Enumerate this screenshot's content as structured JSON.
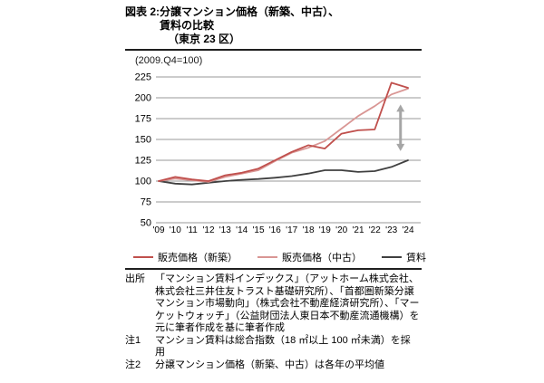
{
  "header": {
    "figure_label": "図表 2:",
    "title_lines": [
      "分譲マンション価格（新築、中古）、",
      "賃料の比較",
      "（東京 23 区）"
    ]
  },
  "chart_data": {
    "type": "line",
    "unit_label": "(2009.Q4=100)",
    "x_labels": [
      "'09",
      "'10",
      "'11",
      "'12",
      "'13",
      "'14",
      "'15",
      "'16",
      "'17",
      "'18",
      "'19",
      "'20",
      "'21",
      "'22",
      "'23",
      "'24"
    ],
    "y_ticks": [
      225,
      200,
      175,
      150,
      125,
      100,
      75,
      50
    ],
    "ylim": [
      50,
      225
    ],
    "grid": true,
    "legend_position": "bottom",
    "series": [
      {
        "name": "new-price",
        "label": "販売価格（新築）",
        "color": "#c0504d",
        "values": [
          100,
          105,
          102,
          100,
          107,
          110,
          115,
          125,
          135,
          143,
          139,
          157,
          161,
          162,
          218,
          212
        ]
      },
      {
        "name": "used-price",
        "label": "販売価格（中古）",
        "color": "#d99694",
        "values": [
          100,
          103,
          101,
          99,
          105,
          109,
          113,
          124,
          134,
          140,
          148,
          163,
          178,
          190,
          204,
          211
        ]
      },
      {
        "name": "rent",
        "label": "賃料",
        "color": "#404040",
        "values": [
          100,
          97,
          96,
          98,
          100,
          101.5,
          102.5,
          104,
          106,
          109,
          113,
          113,
          111,
          112,
          117,
          125
        ]
      }
    ],
    "annotation_arrow": {
      "description": "gap between sales prices and rent after 2023",
      "x_index": 14.55,
      "value_top": 192,
      "value_bottom": 136,
      "color": "#a6a6a6"
    }
  },
  "notes": {
    "source_label": "出所",
    "source_lines": [
      "「マンション賃料インデックス」（アットホーム株式会社、",
      "株式会社三井住友トラスト基礎研究所）、「首都圏新築分譲",
      "マンション市場動向」（株式会社不動産経済研究所）、「マー",
      "ケットウォッチ」（公益財団法人東日本不動産流通機構）を",
      "元に筆者作成を基に筆者作成"
    ],
    "note1_label": "注1",
    "note1_lines": [
      "マンション賃料は総合指数（18 ㎡以上 100 ㎡未満）を採",
      "用"
    ],
    "note2_label": "注2",
    "note2_lines": [
      "分譲マンション価格（新築、中古）は各年の平均値"
    ]
  },
  "colors": {
    "grid": "#999999",
    "rule": "#1f1f1f",
    "text": "#000000"
  }
}
